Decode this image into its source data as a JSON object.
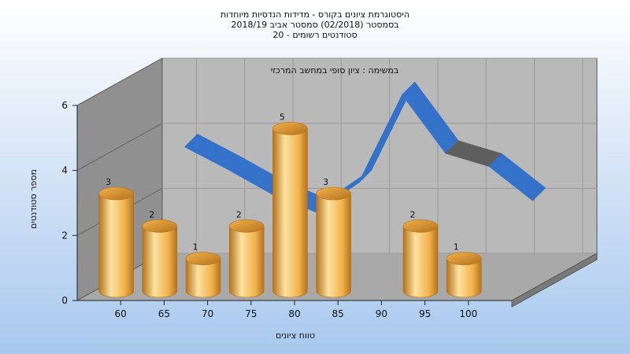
{
  "chart_data": {
    "type": "bar",
    "title_lines": [
      "היסטוגרמת ציונים בקורס - מדידות הנדסיות מיוחדות",
      "בסמסטר  (02/2018)  סמסטר אביב 2018/19",
      "סטודנטים רשומים - 20"
    ],
    "subtitle": "במשימה : ציון סופי במחשב המרכזי",
    "xlabel": "טווח ציונים",
    "ylabel": "מספר סטודנטים",
    "x_ticks": [
      "60",
      "65",
      "70",
      "75",
      "80",
      "85",
      "90",
      "95",
      "100"
    ],
    "y_ticks": [
      "0",
      "2",
      "4",
      "6"
    ],
    "ylim": [
      0,
      6
    ],
    "bars": [
      {
        "bin": "60-65",
        "value": 3
      },
      {
        "bin": "65-70",
        "value": 2
      },
      {
        "bin": "70-75",
        "value": 1
      },
      {
        "bin": "75-80",
        "value": 2
      },
      {
        "bin": "80-85",
        "value": 5
      },
      {
        "bin": "85-90",
        "value": 3
      },
      {
        "bin": "90-95",
        "value": 0
      },
      {
        "bin": "95-100",
        "value": 2
      },
      {
        "bin": "100-105",
        "value": 1
      }
    ],
    "curve": {
      "x": [
        62.5,
        67.5,
        72.5,
        77.5,
        82.5,
        87.5,
        92.5,
        97.5,
        102.5
      ],
      "y": [
        4.0,
        3.3,
        2.55,
        2.0,
        2.9,
        5.6,
        3.8,
        3.4,
        2.35
      ],
      "shaded_segment_x": [
        92.5,
        97.5
      ]
    },
    "colors": {
      "bar_light": "#FCE2A0",
      "bar_mid": "#F2B24C",
      "bar_dark": "#B4721C",
      "curve": "#3471C9",
      "curve_shaded": "#5E5E5E",
      "back_wall": "#B9B9B9",
      "side_wall": "#909090",
      "floor": "#A9A9A9",
      "background_top": "#FFFFFF",
      "background_bottom": "#A8C8EE"
    },
    "grid": true
  }
}
